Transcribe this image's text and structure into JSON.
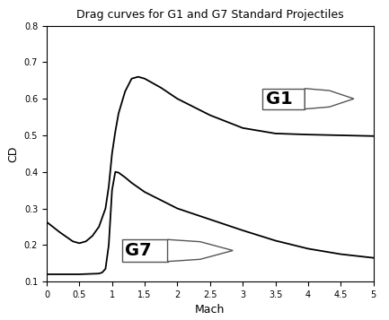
{
  "chart_data": {
    "type": "line",
    "title": "Drag curves for G1 and G7 Standard Projectiles",
    "x_label": "Mach",
    "y_label": "CD",
    "xlim": [
      0,
      5
    ],
    "ylim": [
      0.1,
      0.8
    ],
    "xticks": [
      0,
      0.5,
      1,
      1.5,
      2,
      2.5,
      3,
      3.5,
      4,
      4.5,
      5
    ],
    "yticks": [
      0.1,
      0.2,
      0.3,
      0.4,
      0.5,
      0.6,
      0.7,
      0.8
    ],
    "grid": false,
    "series": [
      {
        "name": "G1",
        "color": "#000000",
        "line_style": "solid",
        "x": [
          0,
          0.2,
          0.4,
          0.5,
          0.6,
          0.7,
          0.8,
          0.9,
          0.95,
          1.0,
          1.05,
          1.1,
          1.2,
          1.3,
          1.4,
          1.5,
          1.75,
          2.0,
          2.5,
          3.0,
          3.5,
          4.0,
          4.5,
          5.0
        ],
        "values": [
          0.263,
          0.235,
          0.21,
          0.205,
          0.21,
          0.225,
          0.25,
          0.3,
          0.36,
          0.45,
          0.51,
          0.56,
          0.62,
          0.655,
          0.66,
          0.655,
          0.63,
          0.6,
          0.555,
          0.52,
          0.505,
          0.502,
          0.5,
          0.498
        ]
      },
      {
        "name": "G7",
        "color": "#000000",
        "line_style": "solid",
        "x": [
          0,
          0.5,
          0.8,
          0.85,
          0.9,
          0.95,
          1.0,
          1.05,
          1.1,
          1.2,
          1.3,
          1.5,
          2.0,
          2.5,
          3.0,
          3.5,
          4.0,
          4.5,
          5.0
        ],
        "values": [
          0.12,
          0.12,
          0.122,
          0.125,
          0.135,
          0.2,
          0.35,
          0.4,
          0.398,
          0.385,
          0.37,
          0.345,
          0.3,
          0.27,
          0.24,
          0.212,
          0.19,
          0.175,
          0.165
        ]
      }
    ]
  }
}
